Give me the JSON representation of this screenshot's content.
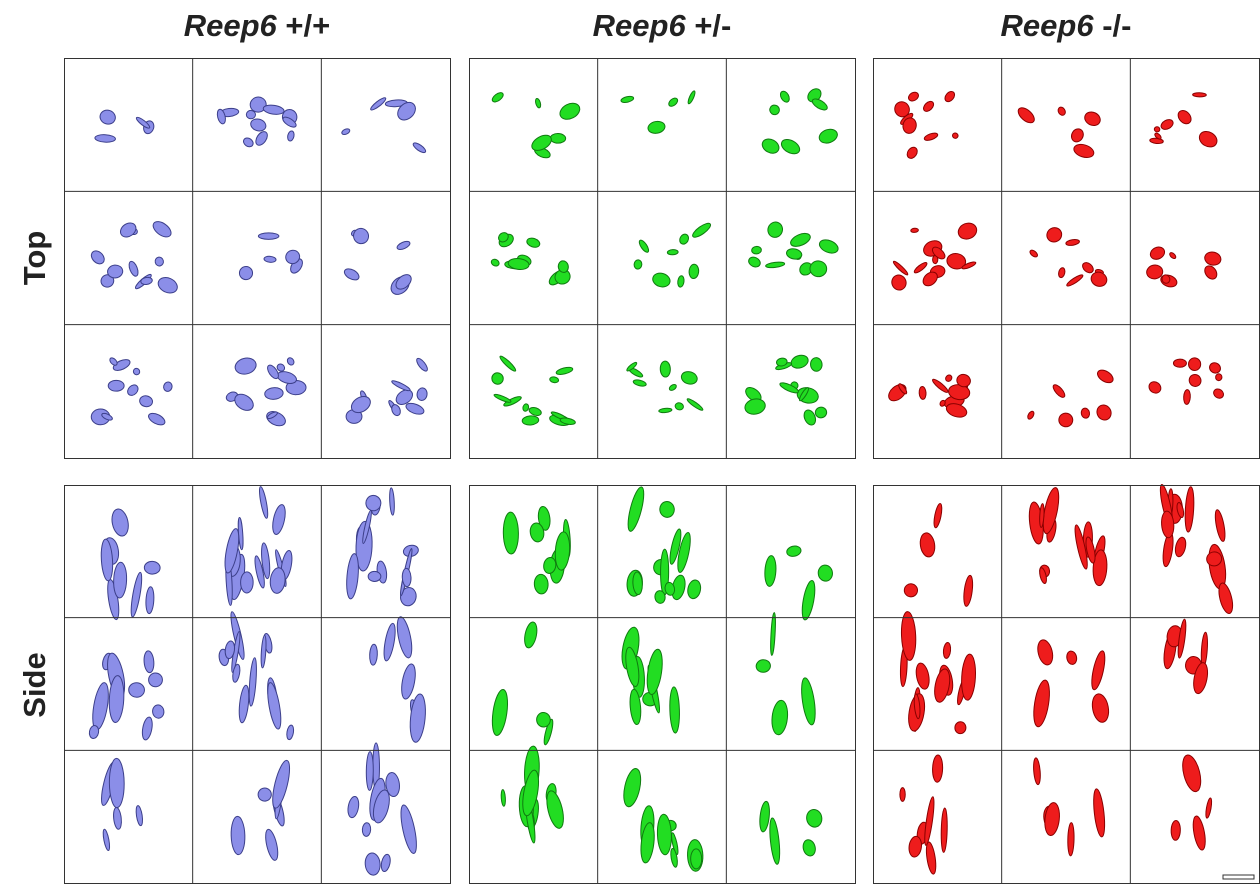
{
  "columns": [
    {
      "gene": "Reep6",
      "genotype": "+/+"
    },
    {
      "gene": "Reep6",
      "genotype": "+/-"
    },
    {
      "gene": "Reep6",
      "genotype": "-/-"
    }
  ],
  "rows": [
    "Top",
    "Side"
  ]
}
